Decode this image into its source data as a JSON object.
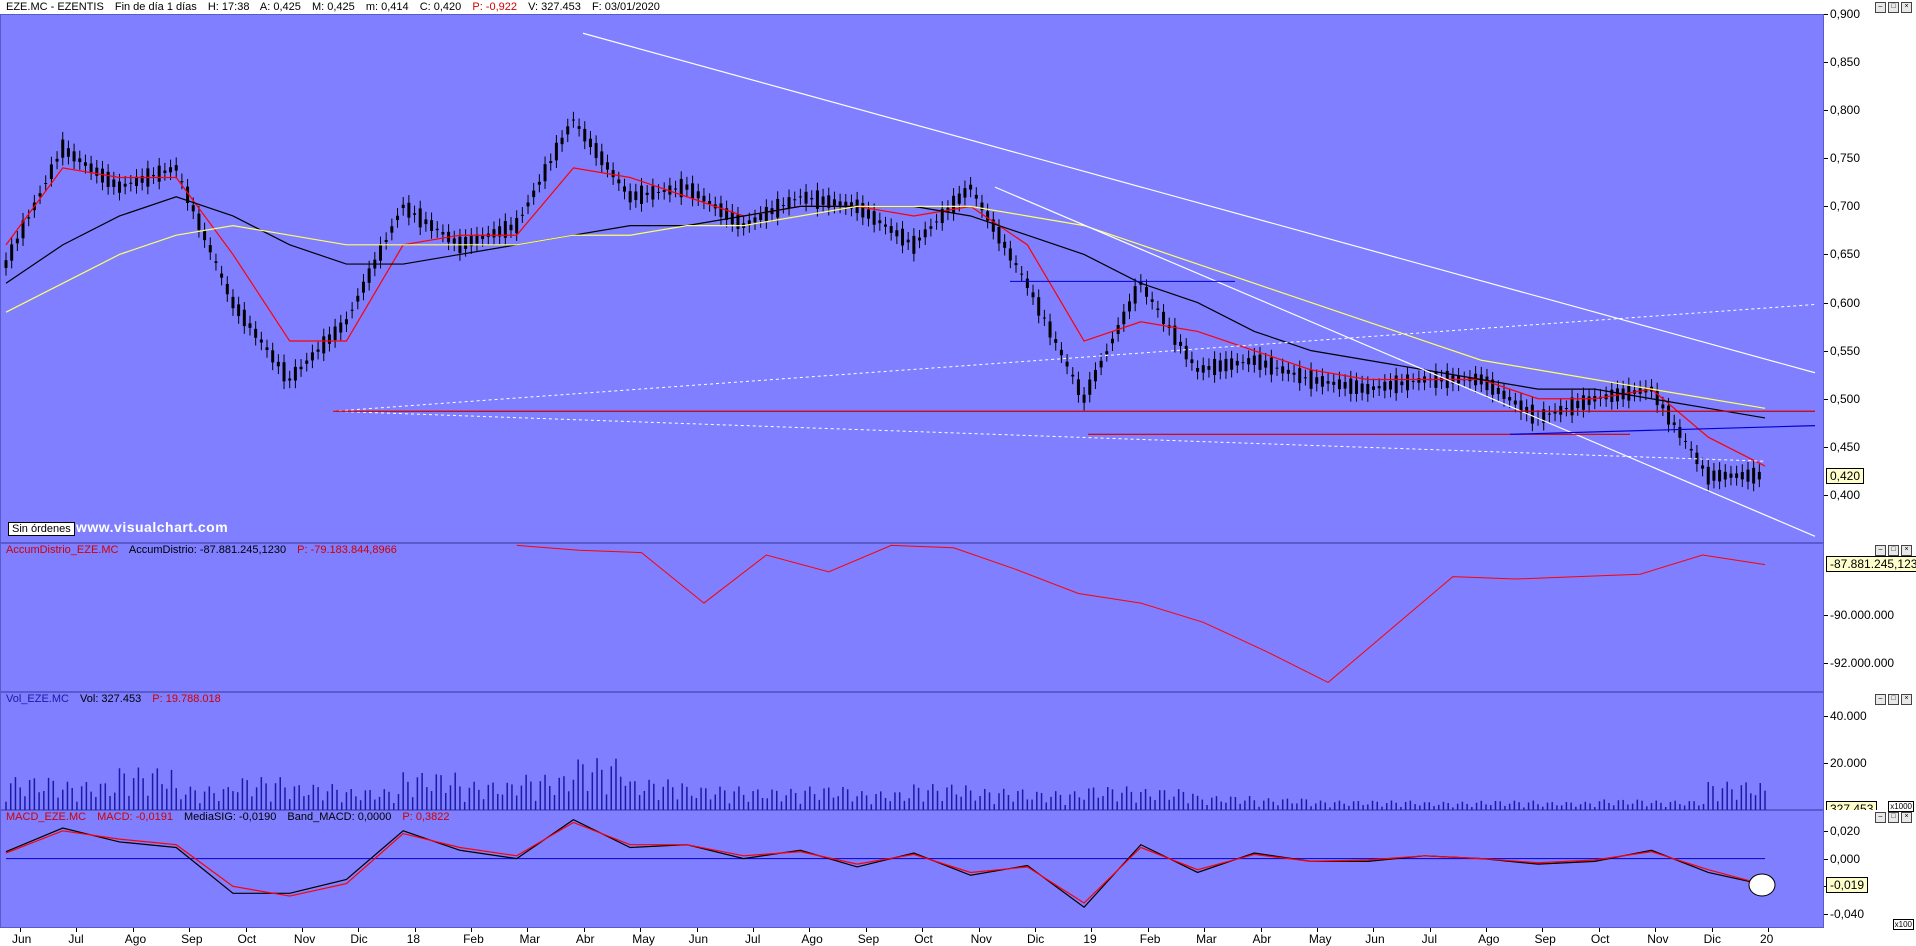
{
  "colors": {
    "plot_bg": "#7f7fff",
    "candle": "#000000",
    "ma_fast": "#ff0000",
    "ma_mid": "#000000",
    "ma_slow": "#ffff66",
    "accum": "#ff0000",
    "volume": "#1a1aa8",
    "macd": "#000000",
    "signal": "#ff0000",
    "trendline": "#ffffff",
    "support_red": "#cc0000",
    "trend_blue": "#0000cc"
  },
  "price_pane": {
    "header": {
      "symbol": "EZE.MC - EZENTIS",
      "timeframe": "Fin de día 1 días",
      "high": "H: 17:38",
      "a": "A: 0,425",
      "m": "M: 0,425",
      "min": "m: 0,414",
      "c": "C: 0,420",
      "p": "P: -0,922",
      "v": "V: 327.453",
      "f": "F: 03/01/2020"
    },
    "current_value": "0,420",
    "ticks": [
      "0,900",
      "0,850",
      "0,800",
      "0,750",
      "0,700",
      "0,650",
      "0,600",
      "0,550",
      "0,500",
      "0,450",
      "0,400"
    ],
    "sin_ordenes": "Sin órdenes",
    "watermark": "www.visualchart.com"
  },
  "accum_pane": {
    "header": {
      "name": "AccumDistrio_EZE.MC",
      "value": "AccumDistrio: -87.881.245,1230",
      "p": "P: -79.183.844,8966"
    },
    "current_value": "-87.881.245,123",
    "ticks": [
      "-90.000.000",
      "-92.000.000"
    ]
  },
  "volume_pane": {
    "header": {
      "name": "Vol_EZE.MC",
      "value": "Vol: 327.453",
      "p": "P: 19.788.018"
    },
    "current_value": "327.453",
    "ticks": [
      "40.000",
      "20.000"
    ],
    "multiplier": "x1000"
  },
  "macd_pane": {
    "header": {
      "name": "MACD_EZE.MC",
      "macd": "MACD: -0,0191",
      "signal": "MediaSIG: -0,0190",
      "band": "Band_MACD: 0,0000",
      "p": "P: 0,3822"
    },
    "current_value": "-0,019",
    "ticks": [
      "0,020",
      "0,000",
      "-0,020",
      "-0,040"
    ],
    "multiplier": "x100"
  },
  "x_axis": {
    "labels": [
      "Jun",
      "Jul",
      "Ago",
      "Sep",
      "Oct",
      "Nov",
      "Dic",
      "18",
      "Feb",
      "Mar",
      "Abr",
      "May",
      "Jun",
      "Jul",
      "Ago",
      "Sep",
      "Oct",
      "Nov",
      "Dic",
      "19",
      "Feb",
      "Mar",
      "Abr",
      "May",
      "Jun",
      "Jul",
      "Ago",
      "Sep",
      "Oct",
      "Nov",
      "Dic",
      "20"
    ]
  },
  "chart_data": [
    {
      "type": "line",
      "title": "EZE.MC - EZENTIS",
      "xlabel": "",
      "ylabel": "",
      "ylim": [
        0.35,
        0.9
      ],
      "x": [
        "2017-06",
        "2017-07",
        "2017-08",
        "2017-09",
        "2017-10",
        "2017-11",
        "2017-12",
        "2018-01",
        "2018-02",
        "2018-03",
        "2018-04",
        "2018-05",
        "2018-06",
        "2018-07",
        "2018-08",
        "2018-09",
        "2018-10",
        "2018-11",
        "2018-12",
        "2019-01",
        "2019-02",
        "2019-03",
        "2019-04",
        "2019-05",
        "2019-06",
        "2019-07",
        "2019-08",
        "2019-09",
        "2019-10",
        "2019-11",
        "2019-12",
        "2020-01"
      ],
      "series": [
        {
          "values": [
            0.64,
            0.76,
            0.72,
            0.74,
            0.6,
            0.52,
            0.58,
            0.7,
            0.66,
            0.68,
            0.79,
            0.71,
            0.72,
            0.68,
            0.71,
            0.7,
            0.66,
            0.72,
            0.62,
            0.5,
            0.62,
            0.53,
            0.54,
            0.52,
            0.51,
            0.52,
            0.52,
            0.48,
            0.5,
            0.51,
            0.42,
            0.42
          ]
        },
        {
          "values": [
            0.66,
            0.74,
            0.73,
            0.73,
            0.65,
            0.56,
            0.56,
            0.66,
            0.67,
            0.67,
            0.74,
            0.73,
            0.71,
            0.69,
            0.7,
            0.7,
            0.69,
            0.7,
            0.66,
            0.56,
            0.58,
            0.57,
            0.55,
            0.53,
            0.52,
            0.52,
            0.52,
            0.5,
            0.5,
            0.51,
            0.46,
            0.43
          ]
        },
        {
          "values": [
            0.62,
            0.66,
            0.69,
            0.71,
            0.69,
            0.66,
            0.64,
            0.64,
            0.65,
            0.66,
            0.67,
            0.68,
            0.68,
            0.69,
            0.7,
            0.7,
            0.7,
            0.69,
            0.67,
            0.65,
            0.62,
            0.6,
            0.57,
            0.55,
            0.54,
            0.53,
            0.52,
            0.51,
            0.51,
            0.5,
            0.49,
            0.48
          ]
        },
        {
          "values": [
            0.59,
            0.62,
            0.65,
            0.67,
            0.68,
            0.67,
            0.66,
            0.66,
            0.66,
            0.66,
            0.67,
            0.67,
            0.68,
            0.68,
            0.69,
            0.7,
            0.7,
            0.7,
            0.69,
            0.68,
            0.66,
            0.64,
            0.62,
            0.6,
            0.58,
            0.56,
            0.54,
            0.53,
            0.52,
            0.51,
            0.5,
            0.49
          ]
        }
      ]
    },
    {
      "type": "line",
      "title": "AccumDistrio_EZE.MC",
      "xlabel": "",
      "ylabel": "",
      "ylim": [
        -93200000,
        -87000000
      ],
      "x": [
        "2018-03",
        "2018-04",
        "2018-05",
        "2018-06",
        "2018-07",
        "2018-08",
        "2018-09",
        "2018-12",
        "2019-01",
        "2019-02",
        "2019-03",
        "2019-04",
        "2019-05",
        "2019-06",
        "2019-07",
        "2019-08",
        "2019-09",
        "2019-10",
        "2019-11",
        "2019-12",
        "2020-01"
      ],
      "series": [
        {
          "values": [
            -87100000,
            -87300000,
            -87400000,
            -89500000,
            -87500000,
            -88200000,
            -87100000,
            -87200000,
            -88100000,
            -89100000,
            -89500000,
            -90300000,
            -91500000,
            -92800000,
            -90600000,
            -88400000,
            -88500000,
            -88400000,
            -88300000,
            -87500000,
            -87900000
          ]
        }
      ]
    },
    {
      "type": "bar",
      "title": "Vol_EZE.MC",
      "xlabel": "",
      "ylabel": "",
      "ylim": [
        0,
        50000
      ],
      "categories": [
        "Jun",
        "Jul",
        "Ago",
        "Sep",
        "Oct",
        "Nov",
        "Dic",
        "18",
        "Feb",
        "Mar",
        "Abr",
        "May",
        "Jun",
        "Jul",
        "Ago",
        "Sep",
        "Oct",
        "Nov",
        "Dic",
        "19",
        "Feb",
        "Mar",
        "Abr",
        "May",
        "Jun",
        "Jul",
        "Ago",
        "Sep",
        "Oct",
        "Nov",
        "Dic",
        "20"
      ],
      "values": [
        14000,
        12000,
        18000,
        10000,
        14000,
        11000,
        9000,
        16000,
        12000,
        15000,
        22000,
        13000,
        10000,
        9000,
        10000,
        8000,
        11000,
        9000,
        8000,
        10000,
        9000,
        6000,
        5000,
        4000,
        4000,
        3500,
        4000,
        3500,
        4500,
        4000,
        12000,
        9000
      ]
    },
    {
      "type": "line",
      "title": "MACD_EZE.MC",
      "xlabel": "",
      "ylabel": "",
      "ylim": [
        -0.05,
        0.035
      ],
      "x": [
        "Jun",
        "Jul",
        "Ago",
        "Sep",
        "Oct",
        "Nov",
        "Dic",
        "18",
        "Feb",
        "Mar",
        "Abr",
        "May",
        "Jun",
        "Jul",
        "Ago",
        "Sep",
        "Oct",
        "Nov",
        "Dic",
        "19",
        "Feb",
        "Mar",
        "Abr",
        "May",
        "Jun",
        "Jul",
        "Ago",
        "Sep",
        "Oct",
        "Nov",
        "Dic",
        "20"
      ],
      "series": [
        {
          "values": [
            0.005,
            0.022,
            0.012,
            0.008,
            -0.025,
            -0.025,
            -0.015,
            0.02,
            0.006,
            0.0,
            0.028,
            0.008,
            0.01,
            0.0,
            0.006,
            -0.006,
            0.004,
            -0.012,
            -0.005,
            -0.035,
            0.01,
            -0.01,
            0.004,
            -0.002,
            -0.002,
            0.002,
            0.0,
            -0.004,
            -0.002,
            0.006,
            -0.01,
            -0.019
          ]
        },
        {
          "values": [
            0.004,
            0.02,
            0.014,
            0.01,
            -0.02,
            -0.027,
            -0.018,
            0.018,
            0.008,
            0.002,
            0.026,
            0.01,
            0.01,
            0.002,
            0.005,
            -0.004,
            0.003,
            -0.01,
            -0.006,
            -0.032,
            0.008,
            -0.008,
            0.003,
            -0.002,
            -0.001,
            0.002,
            0.0,
            -0.003,
            -0.001,
            0.005,
            -0.008,
            -0.019
          ]
        }
      ]
    }
  ]
}
